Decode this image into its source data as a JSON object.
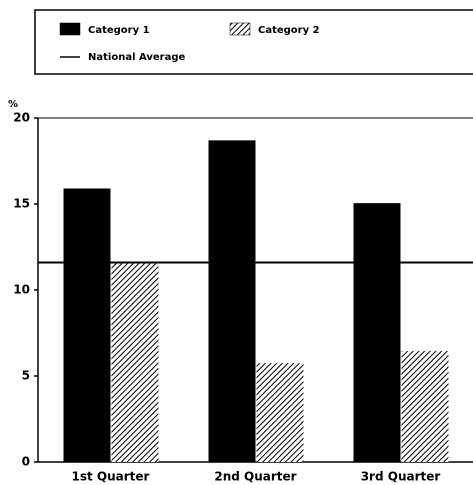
{
  "chart_data": {
    "type": "bar",
    "y_label": "%",
    "categories": [
      "1st Quarter",
      "2nd Quarter",
      "3rd Quarter"
    ],
    "series": [
      {
        "name": "Category 1",
        "color": "#000000",
        "hatch": false,
        "values": [
          15.9,
          18.7,
          15.05
        ]
      },
      {
        "name": "Category 2",
        "color": "#000000",
        "hatch": true,
        "values": [
          11.6,
          5.75,
          6.45
        ]
      }
    ],
    "reference_line": {
      "name": "National Average",
      "value": 11.6,
      "color": "#000000"
    },
    "ylim": [
      0,
      20
    ],
    "yticks": [
      0,
      5,
      10,
      15,
      20
    ],
    "grid": false,
    "legend": "top"
  }
}
